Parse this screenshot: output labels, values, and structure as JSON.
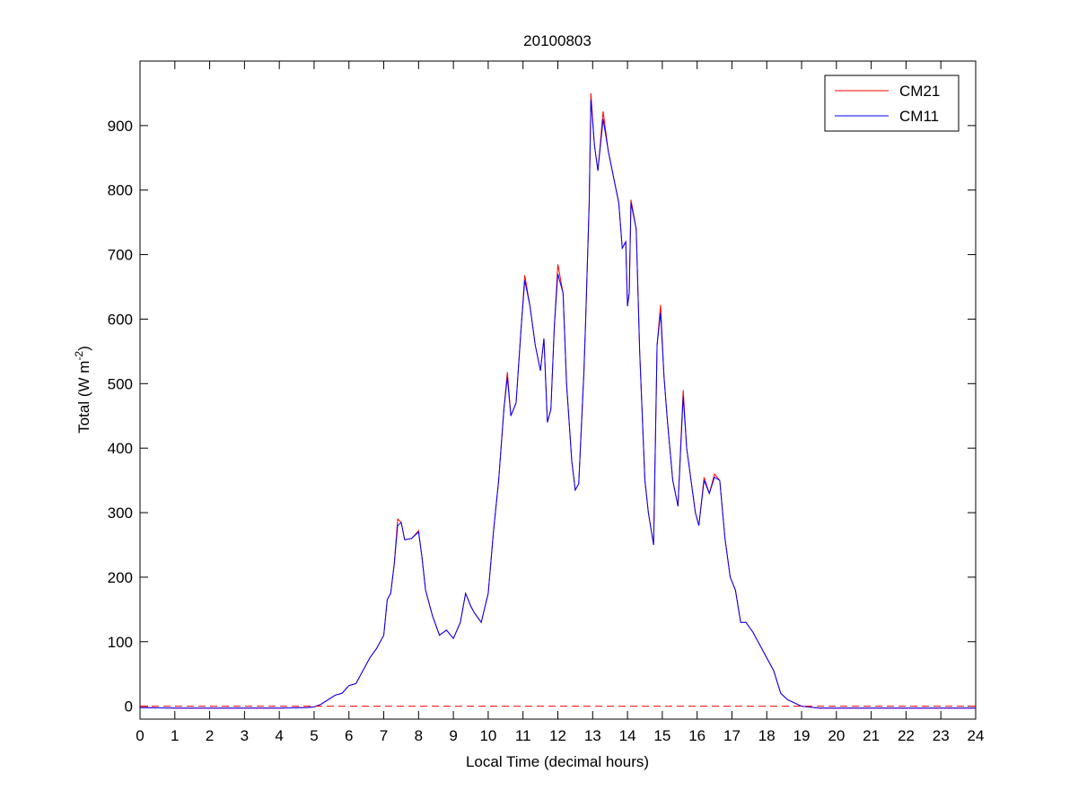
{
  "chart_data": {
    "type": "line",
    "title": "20100803",
    "xlabel": "Local Time (decimal hours)",
    "ylabel": {
      "text": "Total (W m",
      "sup": "-2",
      "end": ")"
    },
    "x": [
      0,
      1,
      2,
      3,
      4,
      4.8,
      5.0,
      5.2,
      5.4,
      5.6,
      5.8,
      6.0,
      6.2,
      6.4,
      6.6,
      6.8,
      7.0,
      7.1,
      7.2,
      7.3,
      7.4,
      7.5,
      7.6,
      7.8,
      8.0,
      8.1,
      8.2,
      8.4,
      8.6,
      8.8,
      9.0,
      9.2,
      9.35,
      9.5,
      9.6,
      9.8,
      10.0,
      10.15,
      10.3,
      10.45,
      10.55,
      10.65,
      10.8,
      10.95,
      11.05,
      11.2,
      11.35,
      11.5,
      11.6,
      11.7,
      11.8,
      11.9,
      12.0,
      12.15,
      12.25,
      12.4,
      12.5,
      12.6,
      12.75,
      12.8,
      12.9,
      12.95,
      13.05,
      13.15,
      13.3,
      13.45,
      13.6,
      13.75,
      13.85,
      13.95,
      14.0,
      14.05,
      14.1,
      14.25,
      14.35,
      14.5,
      14.6,
      14.75,
      14.85,
      14.95,
      15.05,
      15.15,
      15.3,
      15.45,
      15.6,
      15.7,
      15.8,
      15.95,
      16.05,
      16.2,
      16.35,
      16.5,
      16.65,
      16.8,
      16.95,
      17.1,
      17.25,
      17.4,
      17.6,
      17.8,
      18.0,
      18.2,
      18.4,
      18.6,
      18.8,
      19.0,
      19.5,
      20,
      21,
      22,
      23,
      24
    ],
    "series": [
      {
        "name": "CM21",
        "color": "#ff0000",
        "values": [
          -2,
          -3,
          -3,
          -3,
          -3,
          -2,
          -1,
          3,
          10,
          17,
          20,
          32,
          35,
          55,
          75,
          90,
          110,
          165,
          175,
          220,
          290,
          285,
          258,
          260,
          272,
          230,
          180,
          140,
          110,
          118,
          105,
          130,
          175,
          155,
          145,
          130,
          175,
          270,
          350,
          460,
          518,
          450,
          470,
          590,
          668,
          620,
          560,
          520,
          570,
          440,
          460,
          590,
          685,
          640,
          500,
          380,
          335,
          345,
          520,
          600,
          780,
          950,
          870,
          830,
          922,
          860,
          820,
          780,
          710,
          720,
          620,
          640,
          785,
          740,
          550,
          350,
          300,
          250,
          560,
          622,
          510,
          440,
          350,
          310,
          490,
          400,
          360,
          300,
          280,
          355,
          330,
          360,
          350,
          260,
          200,
          180,
          130,
          130,
          115,
          95,
          75,
          55,
          20,
          10,
          5,
          0,
          -3,
          -3,
          -3,
          -3,
          -3,
          -3
        ]
      },
      {
        "name": "CM11",
        "color": "#0000ff",
        "values": [
          -2,
          -3,
          -3,
          -3,
          -3,
          -2,
          -1,
          3,
          10,
          17,
          20,
          32,
          35,
          55,
          75,
          90,
          110,
          165,
          175,
          220,
          280,
          285,
          258,
          260,
          270,
          230,
          180,
          140,
          110,
          118,
          105,
          130,
          175,
          155,
          145,
          130,
          175,
          270,
          350,
          460,
          510,
          450,
          470,
          590,
          660,
          620,
          560,
          520,
          570,
          440,
          460,
          590,
          670,
          640,
          500,
          380,
          335,
          345,
          520,
          600,
          780,
          940,
          870,
          830,
          910,
          860,
          820,
          780,
          710,
          720,
          620,
          640,
          780,
          740,
          550,
          350,
          300,
          250,
          560,
          610,
          510,
          440,
          350,
          310,
          480,
          400,
          360,
          300,
          280,
          350,
          330,
          355,
          350,
          260,
          200,
          180,
          130,
          130,
          115,
          95,
          75,
          55,
          20,
          10,
          5,
          0,
          -3,
          -3,
          -3,
          -3,
          -3,
          -3
        ]
      }
    ],
    "zero_line": {
      "value": 0,
      "color": "#ff0000",
      "dashed": true
    },
    "xlim": [
      0,
      24
    ],
    "xticks": [
      0,
      1,
      2,
      3,
      4,
      5,
      6,
      7,
      8,
      9,
      10,
      11,
      12,
      13,
      14,
      15,
      16,
      17,
      18,
      19,
      20,
      21,
      22,
      23,
      24
    ],
    "ylim": [
      -20,
      1000
    ],
    "yticks": [
      0,
      100,
      200,
      300,
      400,
      500,
      600,
      700,
      800,
      900
    ],
    "legend": "upper right",
    "grid": false
  }
}
